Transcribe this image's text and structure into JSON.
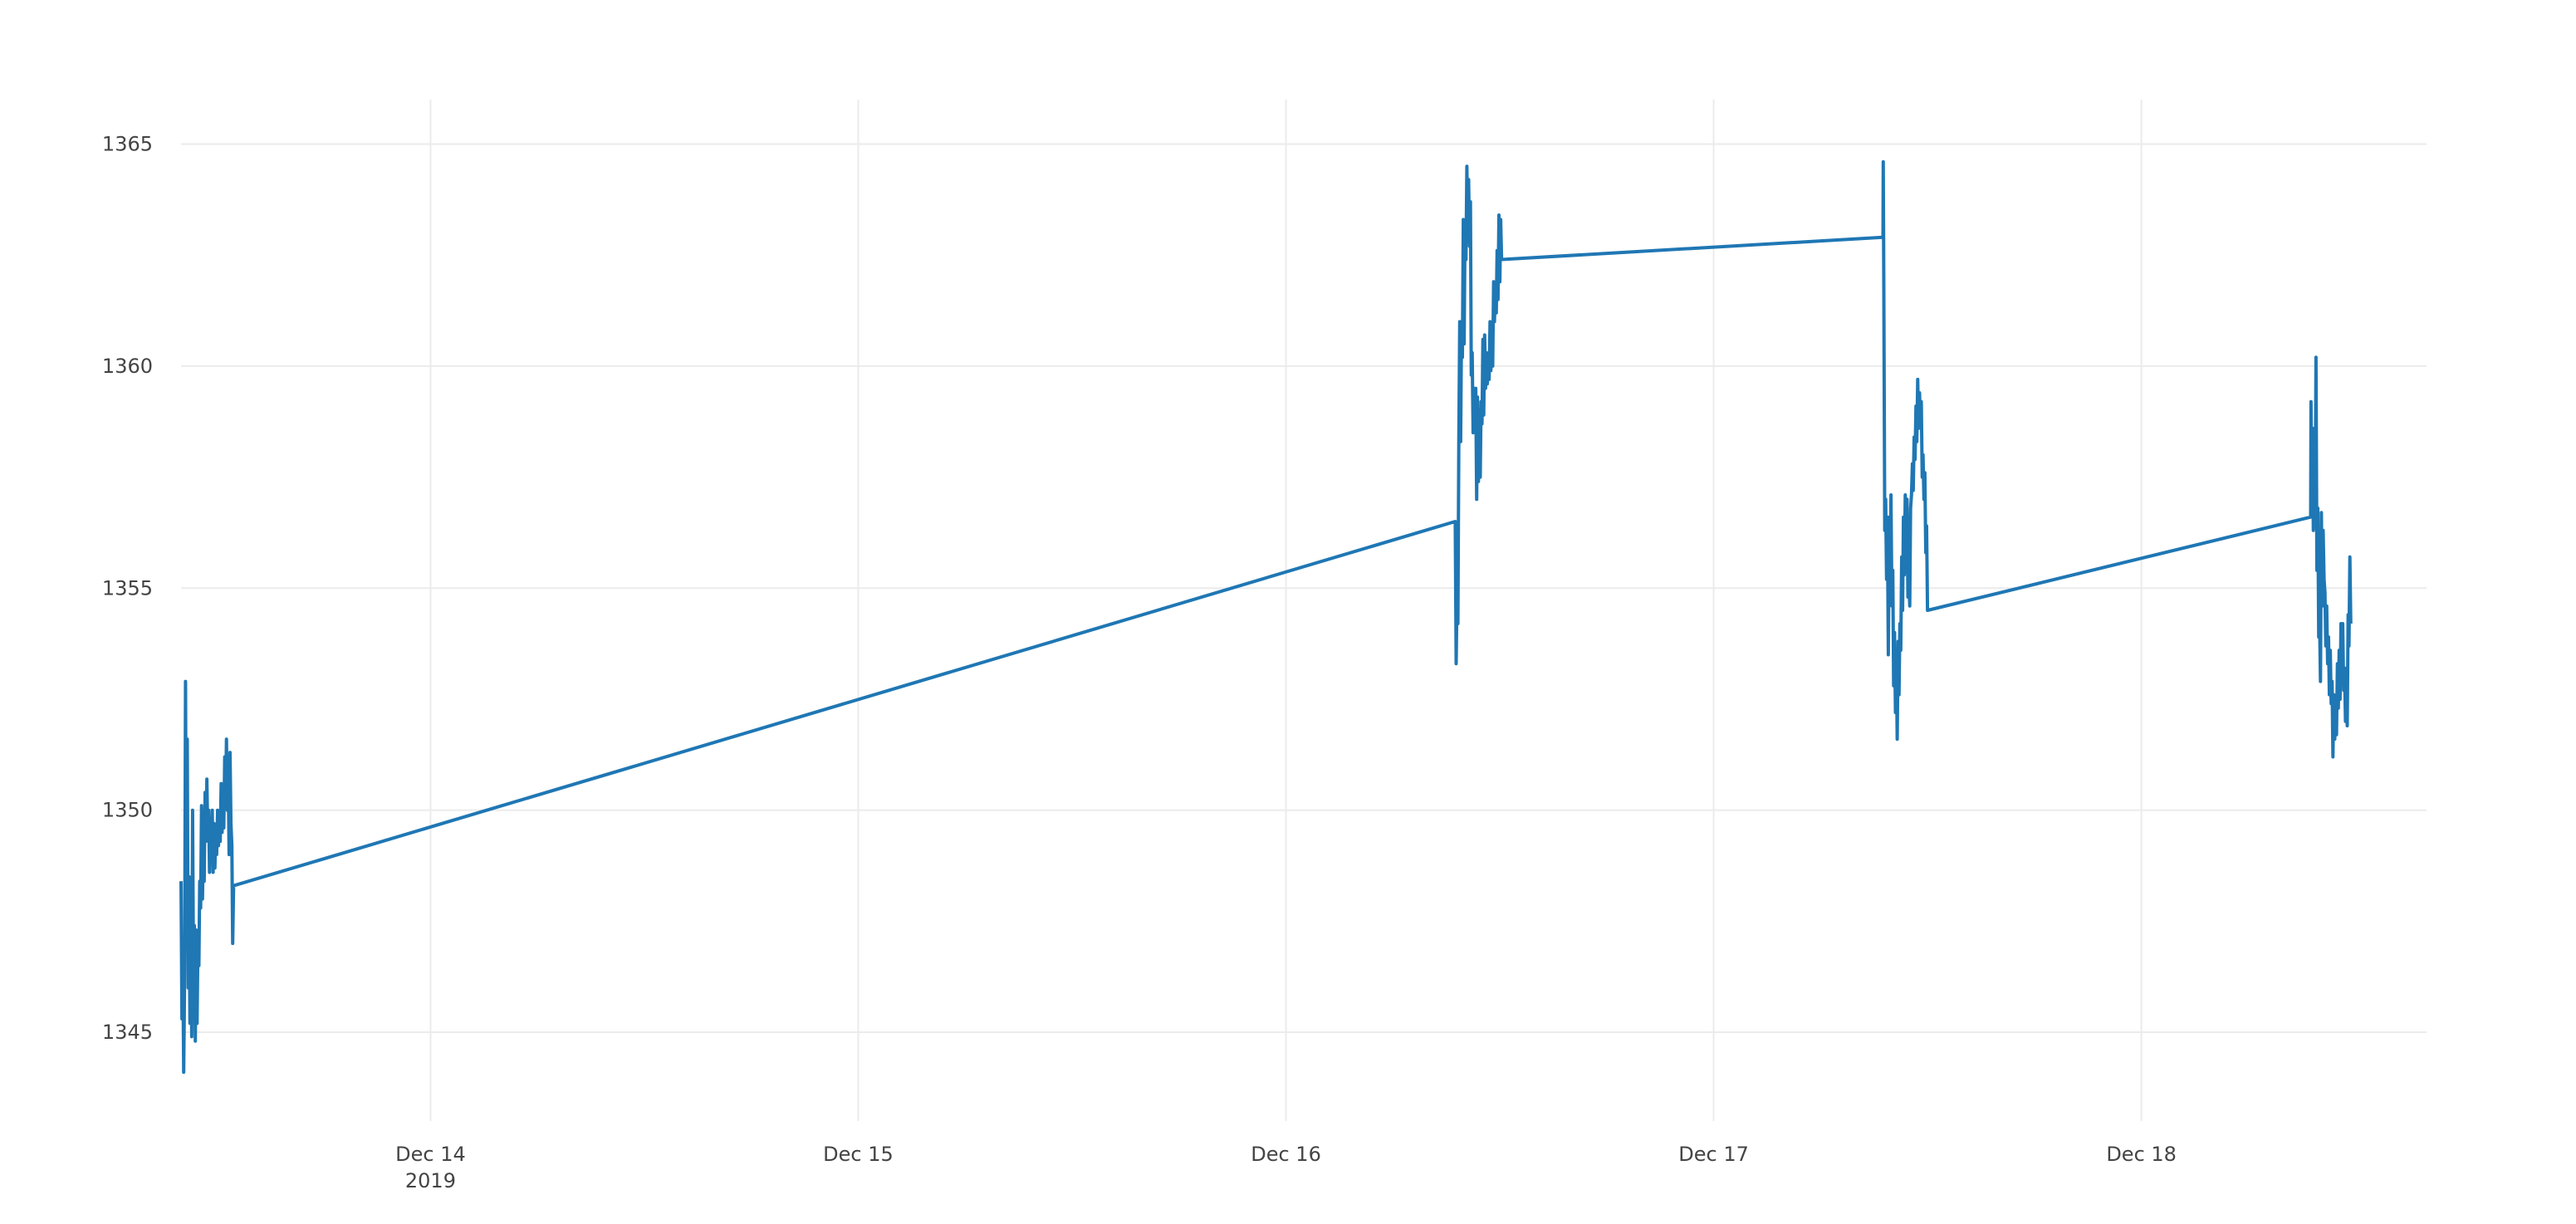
{
  "chart_data": {
    "type": "line",
    "title": "",
    "xlabel": "",
    "ylabel": "",
    "x_type": "date",
    "xlim": [
      "2019-12-13 10:00",
      "2019-12-18 16:00"
    ],
    "ylim": [
      1343,
      1366
    ],
    "y_ticks": [
      1345,
      1350,
      1355,
      1360,
      1365
    ],
    "x_ticks": [
      {
        "date": "2019-12-14 00:00",
        "label": "Dec 14",
        "sublabel": "2019"
      },
      {
        "date": "2019-12-15 00:00",
        "label": "Dec 15",
        "sublabel": ""
      },
      {
        "date": "2019-12-16 00:00",
        "label": "Dec 16",
        "sublabel": ""
      },
      {
        "date": "2019-12-17 00:00",
        "label": "Dec 17",
        "sublabel": ""
      },
      {
        "date": "2019-12-18 00:00",
        "label": "Dec 18",
        "sublabel": ""
      }
    ],
    "grid": true,
    "legend": "none",
    "colors": {
      "series": "#1f77b4",
      "grid": "#ebebeb",
      "text": "#444444"
    },
    "series": [
      {
        "points": [
          [
            "2019-12-13 10:00",
            1348.4
          ],
          [
            "2019-12-13 10:03",
            1345.3
          ],
          [
            "2019-12-13 10:06",
            1346.8
          ],
          [
            "2019-12-13 10:09",
            1344.1
          ],
          [
            "2019-12-13 10:12",
            1346.2
          ],
          [
            "2019-12-13 10:15",
            1352.9
          ],
          [
            "2019-12-13 10:18",
            1348.1
          ],
          [
            "2019-12-13 10:21",
            1351.6
          ],
          [
            "2019-12-13 10:24",
            1346.0
          ],
          [
            "2019-12-13 10:27",
            1348.5
          ],
          [
            "2019-12-13 10:30",
            1345.2
          ],
          [
            "2019-12-13 10:33",
            1346.9
          ],
          [
            "2019-12-13 10:36",
            1344.9
          ],
          [
            "2019-12-13 10:39",
            1350.0
          ],
          [
            "2019-12-13 10:42",
            1346.3
          ],
          [
            "2019-12-13 10:45",
            1347.4
          ],
          [
            "2019-12-13 10:48",
            1344.8
          ],
          [
            "2019-12-13 10:51",
            1347.3
          ],
          [
            "2019-12-13 10:54",
            1345.2
          ],
          [
            "2019-12-13 10:57",
            1347.1
          ],
          [
            "2019-12-13 11:00",
            1346.5
          ],
          [
            "2019-12-13 11:03",
            1348.4
          ],
          [
            "2019-12-13 11:06",
            1347.8
          ],
          [
            "2019-12-13 11:09",
            1350.1
          ],
          [
            "2019-12-13 11:12",
            1348.0
          ],
          [
            "2019-12-13 11:15",
            1349.1
          ],
          [
            "2019-12-13 11:18",
            1348.4
          ],
          [
            "2019-12-13 11:21",
            1350.4
          ],
          [
            "2019-12-13 11:24",
            1349.3
          ],
          [
            "2019-12-13 11:27",
            1350.7
          ],
          [
            "2019-12-13 11:30",
            1349.4
          ],
          [
            "2019-12-13 11:33",
            1350.0
          ],
          [
            "2019-12-13 11:36",
            1348.6
          ],
          [
            "2019-12-13 11:39",
            1349.8
          ],
          [
            "2019-12-13 11:42",
            1349.0
          ],
          [
            "2019-12-13 11:45",
            1350.0
          ],
          [
            "2019-12-13 11:48",
            1348.6
          ],
          [
            "2019-12-13 11:51",
            1349.7
          ],
          [
            "2019-12-13 11:54",
            1348.7
          ],
          [
            "2019-12-13 11:57",
            1349.6
          ],
          [
            "2019-12-13 12:00",
            1349.0
          ],
          [
            "2019-12-13 12:03",
            1350.0
          ],
          [
            "2019-12-13 12:06",
            1349.2
          ],
          [
            "2019-12-13 12:09",
            1349.9
          ],
          [
            "2019-12-13 12:12",
            1349.3
          ],
          [
            "2019-12-13 12:15",
            1350.6
          ],
          [
            "2019-12-13 12:18",
            1349.5
          ],
          [
            "2019-12-13 12:21",
            1350.1
          ],
          [
            "2019-12-13 12:24",
            1349.6
          ],
          [
            "2019-12-13 12:27",
            1351.2
          ],
          [
            "2019-12-13 12:30",
            1350.2
          ],
          [
            "2019-12-13 12:33",
            1351.6
          ],
          [
            "2019-12-13 12:36",
            1350.0
          ],
          [
            "2019-12-13 12:39",
            1350.6
          ],
          [
            "2019-12-13 12:42",
            1349.0
          ],
          [
            "2019-12-13 12:45",
            1351.3
          ],
          [
            "2019-12-13 12:48",
            1349.7
          ],
          [
            "2019-12-13 12:51",
            1349.2
          ],
          [
            "2019-12-13 12:54",
            1347.0
          ],
          [
            "2019-12-13 12:57",
            1348.3
          ],
          [
            "2019-12-16 09:30",
            1356.5
          ],
          [
            "2019-12-16 09:33",
            1353.3
          ],
          [
            "2019-12-16 09:36",
            1355.0
          ],
          [
            "2019-12-16 09:39",
            1354.2
          ],
          [
            "2019-12-16 09:42",
            1358.3
          ],
          [
            "2019-12-16 09:45",
            1361.0
          ],
          [
            "2019-12-16 09:48",
            1358.3
          ],
          [
            "2019-12-16 09:51",
            1360.8
          ],
          [
            "2019-12-16 09:54",
            1360.2
          ],
          [
            "2019-12-16 09:57",
            1363.3
          ],
          [
            "2019-12-16 10:00",
            1360.5
          ],
          [
            "2019-12-16 10:03",
            1363.2
          ],
          [
            "2019-12-16 10:06",
            1362.4
          ],
          [
            "2019-12-16 10:09",
            1364.5
          ],
          [
            "2019-12-16 10:12",
            1363.0
          ],
          [
            "2019-12-16 10:15",
            1364.2
          ],
          [
            "2019-12-16 10:18",
            1362.7
          ],
          [
            "2019-12-16 10:21",
            1363.7
          ],
          [
            "2019-12-16 10:24",
            1359.8
          ],
          [
            "2019-12-16 10:27",
            1360.3
          ],
          [
            "2019-12-16 10:30",
            1358.5
          ],
          [
            "2019-12-16 10:33",
            1359.5
          ],
          [
            "2019-12-16 10:36",
            1358.6
          ],
          [
            "2019-12-16 10:39",
            1359.5
          ],
          [
            "2019-12-16 10:42",
            1357.0
          ],
          [
            "2019-12-16 10:45",
            1359.3
          ],
          [
            "2019-12-16 10:48",
            1357.4
          ],
          [
            "2019-12-16 10:51",
            1359.0
          ],
          [
            "2019-12-16 10:54",
            1357.5
          ],
          [
            "2019-12-16 10:57",
            1359.2
          ],
          [
            "2019-12-16 11:00",
            1358.7
          ],
          [
            "2019-12-16 11:03",
            1360.6
          ],
          [
            "2019-12-16 11:06",
            1358.9
          ],
          [
            "2019-12-16 11:09",
            1360.7
          ],
          [
            "2019-12-16 11:12",
            1359.5
          ],
          [
            "2019-12-16 11:15",
            1360.3
          ],
          [
            "2019-12-16 11:18",
            1359.6
          ],
          [
            "2019-12-16 11:21",
            1360.2
          ],
          [
            "2019-12-16 11:24",
            1359.7
          ],
          [
            "2019-12-16 11:27",
            1361.0
          ],
          [
            "2019-12-16 11:30",
            1359.9
          ],
          [
            "2019-12-16 11:33",
            1360.8
          ],
          [
            "2019-12-16 11:36",
            1360.0
          ],
          [
            "2019-12-16 11:39",
            1361.9
          ],
          [
            "2019-12-16 11:42",
            1361.0
          ],
          [
            "2019-12-16 11:45",
            1361.8
          ],
          [
            "2019-12-16 11:48",
            1361.2
          ],
          [
            "2019-12-16 11:51",
            1362.6
          ],
          [
            "2019-12-16 11:54",
            1361.5
          ],
          [
            "2019-12-16 11:57",
            1363.4
          ],
          [
            "2019-12-16 12:00",
            1361.9
          ],
          [
            "2019-12-16 12:03",
            1363.3
          ],
          [
            "2019-12-16 12:06",
            1362.4
          ],
          [
            "2019-12-17 09:30",
            1362.9
          ],
          [
            "2019-12-17 09:31",
            1364.6
          ],
          [
            "2019-12-17 09:33",
            1361.7
          ],
          [
            "2019-12-17 09:36",
            1356.3
          ],
          [
            "2019-12-17 09:39",
            1357.0
          ],
          [
            "2019-12-17 09:42",
            1355.2
          ],
          [
            "2019-12-17 09:45",
            1356.6
          ],
          [
            "2019-12-17 09:48",
            1353.5
          ],
          [
            "2019-12-17 09:51",
            1356.6
          ],
          [
            "2019-12-17 09:54",
            1354.9
          ],
          [
            "2019-12-17 09:57",
            1357.1
          ],
          [
            "2019-12-17 10:00",
            1354.6
          ],
          [
            "2019-12-17 10:03",
            1355.4
          ],
          [
            "2019-12-17 10:06",
            1352.8
          ],
          [
            "2019-12-17 10:09",
            1354.0
          ],
          [
            "2019-12-17 10:12",
            1352.2
          ],
          [
            "2019-12-17 10:15",
            1353.4
          ],
          [
            "2019-12-17 10:18",
            1351.6
          ],
          [
            "2019-12-17 10:21",
            1353.8
          ],
          [
            "2019-12-17 10:24",
            1352.6
          ],
          [
            "2019-12-17 10:27",
            1354.2
          ],
          [
            "2019-12-17 10:30",
            1353.6
          ],
          [
            "2019-12-17 10:33",
            1355.7
          ],
          [
            "2019-12-17 10:36",
            1354.5
          ],
          [
            "2019-12-17 10:39",
            1356.6
          ],
          [
            "2019-12-17 10:42",
            1355.3
          ],
          [
            "2019-12-17 10:45",
            1357.1
          ],
          [
            "2019-12-17 10:48",
            1355.8
          ],
          [
            "2019-12-17 10:51",
            1357.0
          ],
          [
            "2019-12-17 10:54",
            1354.8
          ],
          [
            "2019-12-17 10:57",
            1355.3
          ],
          [
            "2019-12-17 11:00",
            1354.6
          ],
          [
            "2019-12-17 11:03",
            1356.8
          ],
          [
            "2019-12-17 11:06",
            1357.1
          ],
          [
            "2019-12-17 11:09",
            1357.8
          ],
          [
            "2019-12-17 11:12",
            1357.2
          ],
          [
            "2019-12-17 11:15",
            1358.4
          ],
          [
            "2019-12-17 11:18",
            1357.9
          ],
          [
            "2019-12-17 11:21",
            1359.1
          ],
          [
            "2019-12-17 11:24",
            1358.3
          ],
          [
            "2019-12-17 11:27",
            1359.7
          ],
          [
            "2019-12-17 11:30",
            1358.6
          ],
          [
            "2019-12-17 11:33",
            1359.4
          ],
          [
            "2019-12-17 11:36",
            1358.7
          ],
          [
            "2019-12-17 11:39",
            1359.2
          ],
          [
            "2019-12-17 11:42",
            1357.5
          ],
          [
            "2019-12-17 11:45",
            1358.0
          ],
          [
            "2019-12-17 11:48",
            1357.0
          ],
          [
            "2019-12-17 11:51",
            1357.6
          ],
          [
            "2019-12-17 11:54",
            1355.8
          ],
          [
            "2019-12-17 11:57",
            1356.4
          ],
          [
            "2019-12-17 12:00",
            1354.5
          ],
          [
            "2019-12-18 09:30",
            1356.6
          ],
          [
            "2019-12-18 09:31",
            1359.2
          ],
          [
            "2019-12-18 09:33",
            1357.6
          ],
          [
            "2019-12-18 09:36",
            1358.6
          ],
          [
            "2019-12-18 09:39",
            1356.3
          ],
          [
            "2019-12-18 09:42",
            1358.0
          ],
          [
            "2019-12-18 09:45",
            1356.9
          ],
          [
            "2019-12-18 09:48",
            1360.2
          ],
          [
            "2019-12-18 09:51",
            1355.4
          ],
          [
            "2019-12-18 09:54",
            1356.8
          ],
          [
            "2019-12-18 09:57",
            1353.9
          ],
          [
            "2019-12-18 10:00",
            1354.3
          ],
          [
            "2019-12-18 10:03",
            1352.9
          ],
          [
            "2019-12-18 10:06",
            1356.7
          ],
          [
            "2019-12-18 10:09",
            1354.6
          ],
          [
            "2019-12-18 10:12",
            1356.3
          ],
          [
            "2019-12-18 10:15",
            1355.2
          ],
          [
            "2019-12-18 10:18",
            1354.9
          ],
          [
            "2019-12-18 10:21",
            1353.7
          ],
          [
            "2019-12-18 10:24",
            1354.6
          ],
          [
            "2019-12-18 10:27",
            1353.3
          ],
          [
            "2019-12-18 10:30",
            1353.9
          ],
          [
            "2019-12-18 10:33",
            1352.6
          ],
          [
            "2019-12-18 10:36",
            1353.6
          ],
          [
            "2019-12-18 10:39",
            1352.4
          ],
          [
            "2019-12-18 10:42",
            1352.9
          ],
          [
            "2019-12-18 10:45",
            1351.2
          ],
          [
            "2019-12-18 10:48",
            1352.6
          ],
          [
            "2019-12-18 10:51",
            1351.6
          ],
          [
            "2019-12-18 10:54",
            1352.4
          ],
          [
            "2019-12-18 10:57",
            1351.7
          ],
          [
            "2019-12-18 11:00",
            1353.3
          ],
          [
            "2019-12-18 11:03",
            1352.3
          ],
          [
            "2019-12-18 11:06",
            1353.6
          ],
          [
            "2019-12-18 11:09",
            1352.5
          ],
          [
            "2019-12-18 11:12",
            1354.2
          ],
          [
            "2019-12-18 11:15",
            1353.1
          ],
          [
            "2019-12-18 11:18",
            1354.2
          ],
          [
            "2019-12-18 11:21",
            1352.7
          ],
          [
            "2019-12-18 11:24",
            1353.2
          ],
          [
            "2019-12-18 11:27",
            1352.0
          ],
          [
            "2019-12-18 11:30",
            1352.8
          ],
          [
            "2019-12-18 11:33",
            1351.9
          ],
          [
            "2019-12-18 11:36",
            1354.4
          ],
          [
            "2019-12-18 11:39",
            1353.7
          ],
          [
            "2019-12-18 11:42",
            1355.7
          ],
          [
            "2019-12-18 11:45",
            1354.2
          ]
        ]
      }
    ]
  }
}
